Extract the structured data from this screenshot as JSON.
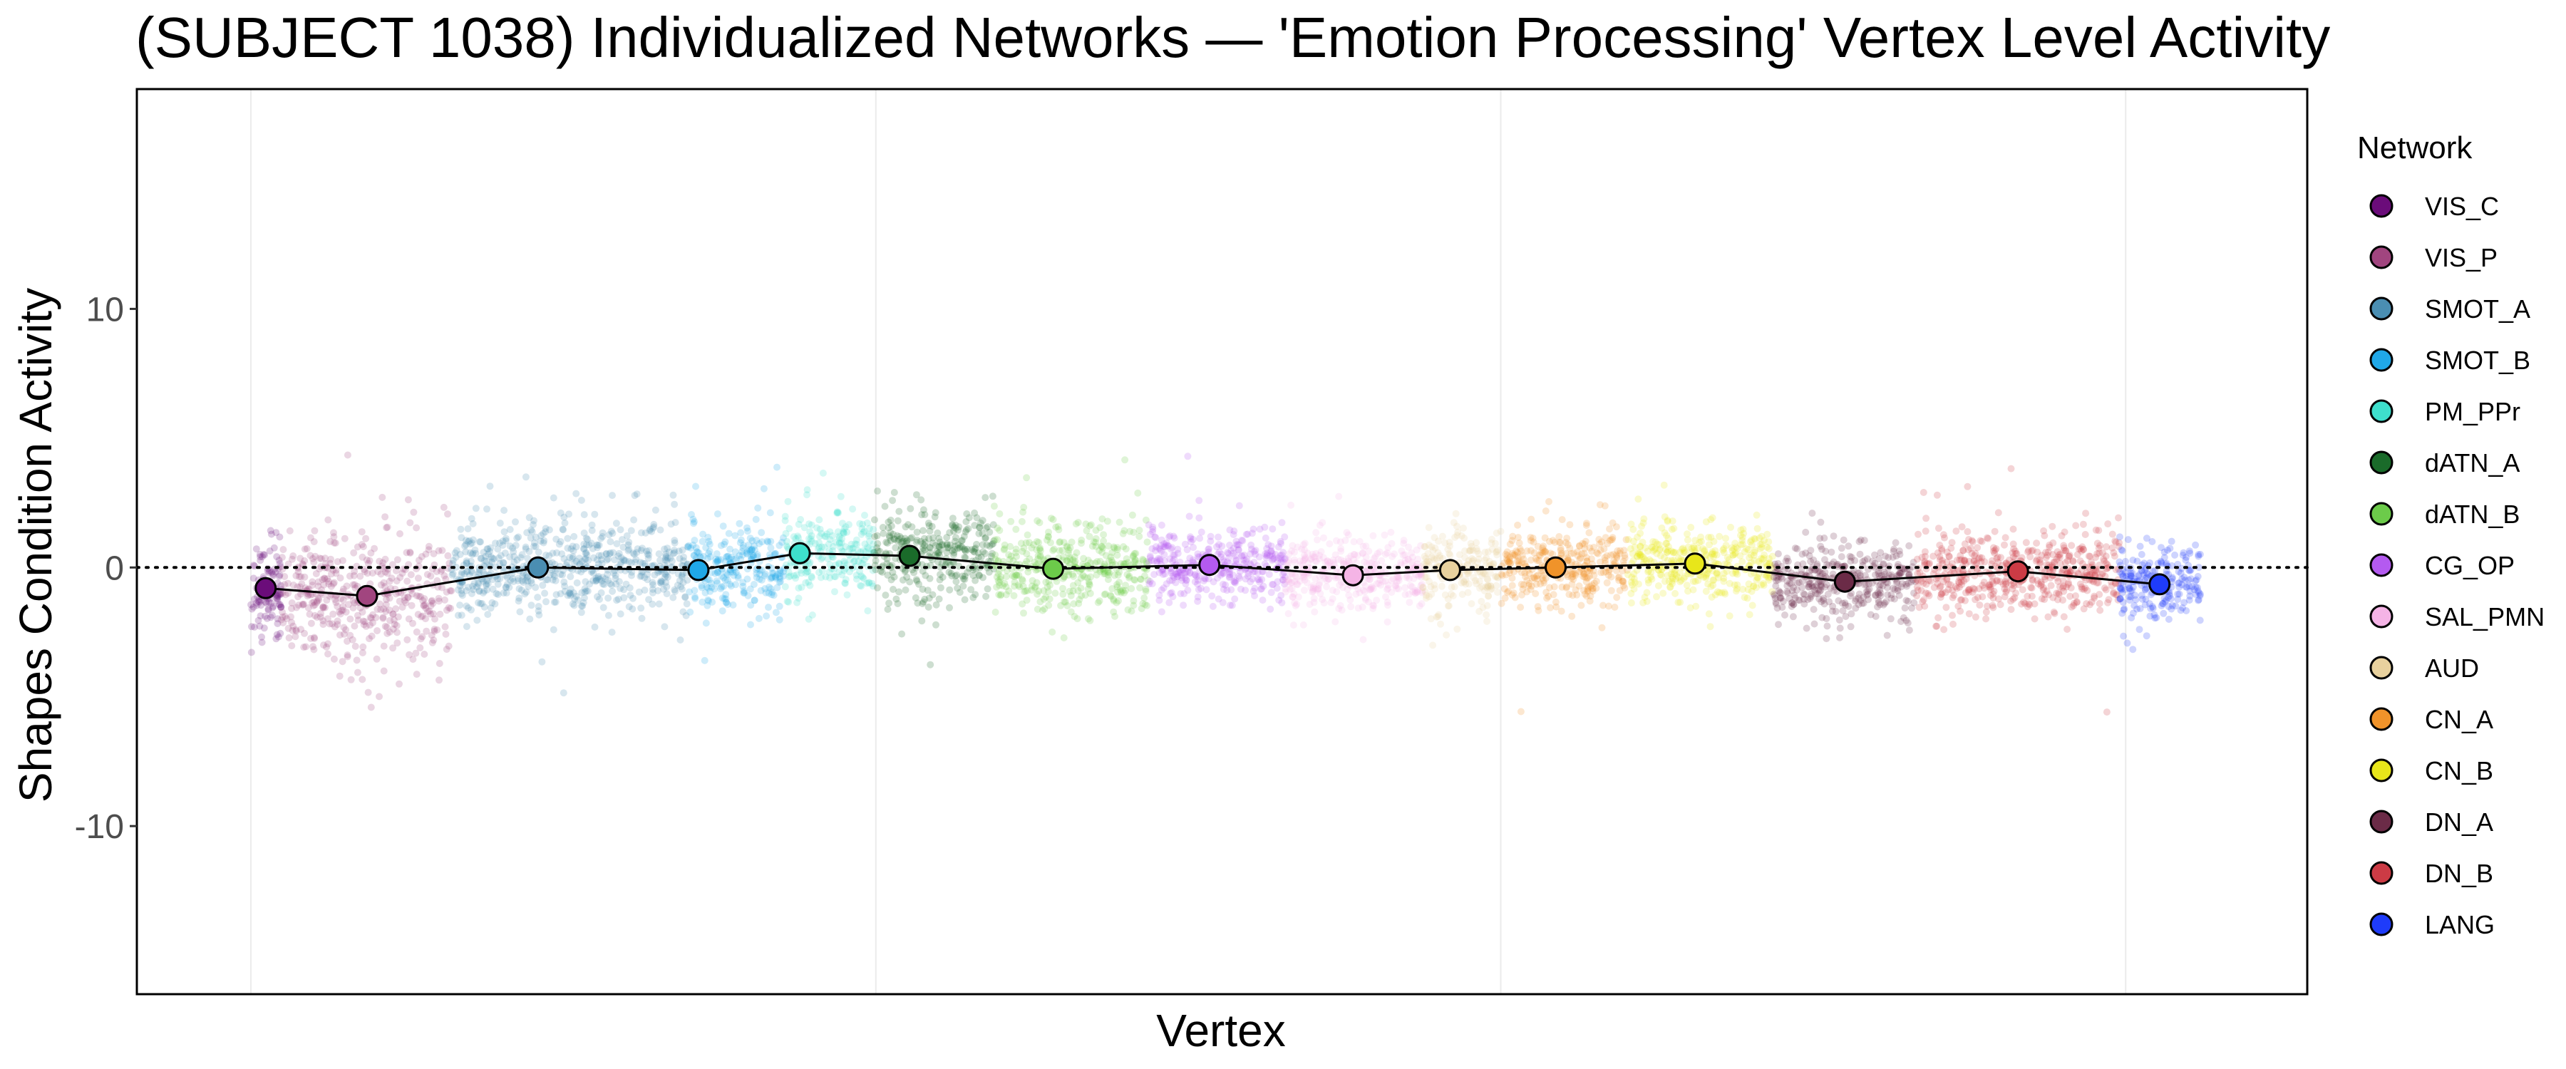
{
  "chart_data": {
    "type": "scatter",
    "title": "(SUBJECT 1038) Individualized Networks — 'Emotion Processing' Vertex Level Activity",
    "xlabel": "Vertex",
    "ylabel": "Shapes Condition Activity",
    "ylim": [
      -16.5,
      18.5
    ],
    "yticks": [
      10,
      0,
      -10
    ],
    "reference_line": 0,
    "grid": "minimal vertical",
    "legend": {
      "title": "Network",
      "position": "right"
    },
    "series": [
      {
        "name": "VIS_C",
        "color": "#6B0C7A",
        "x_range": [
          0,
          720
        ],
        "mean": -0.8,
        "spread": 1.2
      },
      {
        "name": "VIS_P",
        "color": "#A1457F",
        "x_range": [
          720,
          4750
        ],
        "mean": -1.1,
        "spread": 1.6
      },
      {
        "name": "SMOT_A",
        "color": "#4A8EB2",
        "x_range": [
          4750,
          10350
        ],
        "mean": 0.0,
        "spread": 1.2
      },
      {
        "name": "SMOT_B",
        "color": "#20A8E8",
        "x_range": [
          10350,
          12650
        ],
        "mean": -0.1,
        "spread": 1.1
      },
      {
        "name": "PM_PPr",
        "color": "#3EDFCC",
        "x_range": [
          12650,
          14750
        ],
        "mean": 0.55,
        "spread": 1.1
      },
      {
        "name": "dATN_A",
        "color": "#1A6B2A",
        "x_range": [
          14750,
          17600
        ],
        "mean": 0.45,
        "spread": 1.2
      },
      {
        "name": "dATN_B",
        "color": "#6CCB4A",
        "x_range": [
          17600,
          21250
        ],
        "mean": -0.05,
        "spread": 1.2
      },
      {
        "name": "CG_OP",
        "color": "#B45AF0",
        "x_range": [
          21250,
          24500
        ],
        "mean": 0.1,
        "spread": 0.9
      },
      {
        "name": "SAL_PMN",
        "color": "#F5B4E6",
        "x_range": [
          24500,
          27750
        ],
        "mean": -0.3,
        "spread": 0.9
      },
      {
        "name": "AUD",
        "color": "#E8D19E",
        "x_range": [
          27750,
          29600
        ],
        "mean": -0.1,
        "spread": 1.0
      },
      {
        "name": "CN_A",
        "color": "#F0932A",
        "x_range": [
          29600,
          32600
        ],
        "mean": 0.0,
        "spread": 1.0
      },
      {
        "name": "CN_B",
        "color": "#E8E61A",
        "x_range": [
          32600,
          36050
        ],
        "mean": 0.15,
        "spread": 0.9
      },
      {
        "name": "DN_A",
        "color": "#6B2B47",
        "x_range": [
          36050,
          39450
        ],
        "mean": -0.55,
        "spread": 0.9
      },
      {
        "name": "DN_B",
        "color": "#CC3B45",
        "x_range": [
          39450,
          44250
        ],
        "mean": -0.15,
        "spread": 1.1
      },
      {
        "name": "LANG",
        "color": "#1F3CFA",
        "x_range": [
          44250,
          46200
        ],
        "mean": -0.65,
        "spread": 1.0
      }
    ],
    "means_line": [
      {
        "x": 350,
        "y": -0.8
      },
      {
        "x": 2750,
        "y": -1.1
      },
      {
        "x": 6800,
        "y": 0.0
      },
      {
        "x": 10600,
        "y": -0.1
      },
      {
        "x": 13000,
        "y": 0.55
      },
      {
        "x": 15600,
        "y": 0.45
      },
      {
        "x": 19000,
        "y": -0.05
      },
      {
        "x": 22700,
        "y": 0.1
      },
      {
        "x": 26100,
        "y": -0.3
      },
      {
        "x": 28400,
        "y": -0.1
      },
      {
        "x": 30900,
        "y": 0.0
      },
      {
        "x": 34200,
        "y": 0.15
      },
      {
        "x": 37750,
        "y": -0.55
      },
      {
        "x": 41850,
        "y": -0.15
      },
      {
        "x": 45200,
        "y": -0.65
      }
    ]
  }
}
